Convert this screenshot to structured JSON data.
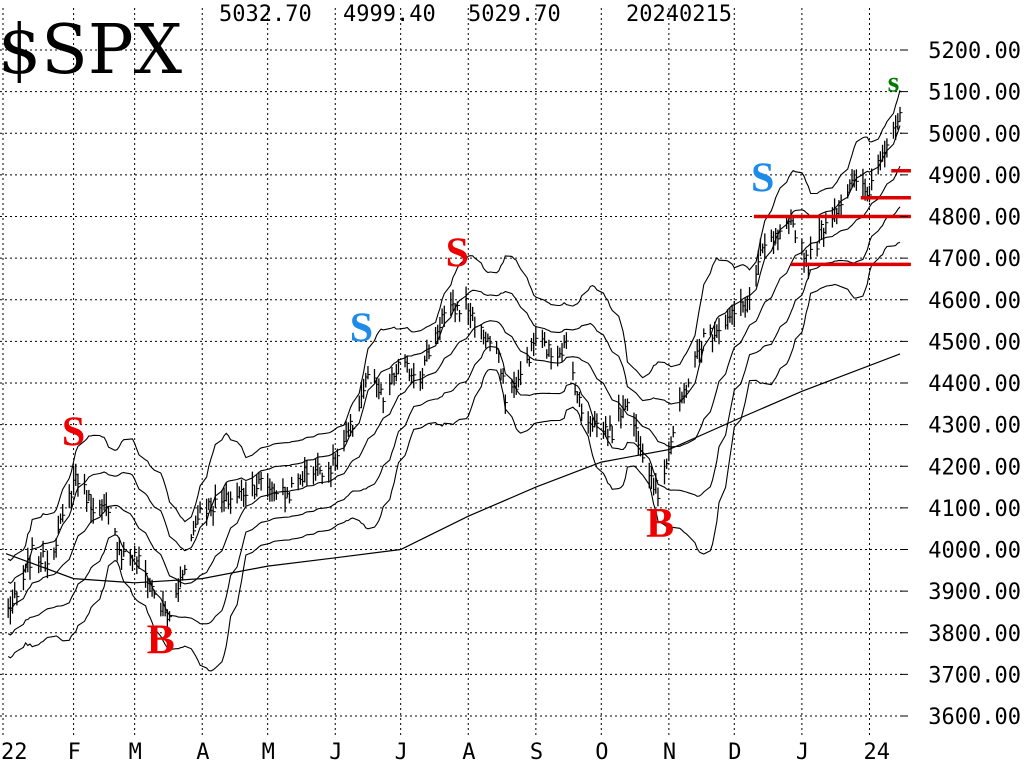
{
  "header": {
    "symbol": "$SPX",
    "high": "5032.70",
    "low": "4999.40",
    "close": "5029.70",
    "date": "20240215"
  },
  "chart_data": {
    "type": "line",
    "title": "$SPX",
    "x_tick_labels": [
      "22",
      "F",
      "M",
      "A",
      "M",
      "J",
      "J",
      "A",
      "S",
      "O",
      "N",
      "D",
      "J",
      "24"
    ],
    "y_tick_labels": [
      "5200.00",
      "5100.00",
      "5000.00",
      "4900.00",
      "4800.00",
      "4700.00",
      "4600.00",
      "4500.00",
      "4400.00",
      "4300.00",
      "4200.00",
      "4100.00",
      "4000.00",
      "3900.00",
      "3800.00",
      "3700.00",
      "3600.00"
    ],
    "ylim": [
      3575,
      5260
    ],
    "grid": true,
    "price_path": [
      [
        "2023-01-01",
        3850
      ],
      [
        "2023-01-06",
        3880
      ],
      [
        "2023-01-13",
        3990
      ],
      [
        "2023-01-20",
        3970
      ],
      [
        "2023-01-27",
        4070
      ],
      [
        "2023-02-02",
        4180
      ],
      [
        "2023-02-09",
        4110
      ],
      [
        "2023-02-16",
        4090
      ],
      [
        "2023-02-23",
        3990
      ],
      [
        "2023-03-02",
        3980
      ],
      [
        "2023-03-08",
        3920
      ],
      [
        "2023-03-13",
        3860
      ],
      [
        "2023-03-17",
        3830
      ],
      [
        "2023-03-23",
        3950
      ],
      [
        "2023-03-31",
        4100
      ],
      [
        "2023-04-10",
        4110
      ],
      [
        "2023-04-20",
        4140
      ],
      [
        "2023-04-28",
        4160
      ],
      [
        "2023-05-10",
        4130
      ],
      [
        "2023-05-19",
        4190
      ],
      [
        "2023-05-31",
        4200
      ],
      [
        "2023-06-09",
        4300
      ],
      [
        "2023-06-16",
        4420
      ],
      [
        "2023-06-23",
        4360
      ],
      [
        "2023-06-30",
        4440
      ],
      [
        "2023-07-10",
        4420
      ],
      [
        "2023-07-20",
        4560
      ],
      [
        "2023-07-31",
        4590
      ],
      [
        "2023-08-07",
        4520
      ],
      [
        "2023-08-14",
        4480
      ],
      [
        "2023-08-18",
        4370
      ],
      [
        "2023-08-25",
        4410
      ],
      [
        "2023-09-01",
        4510
      ],
      [
        "2023-09-08",
        4470
      ],
      [
        "2023-09-15",
        4490
      ],
      [
        "2023-09-22",
        4330
      ],
      [
        "2023-09-29",
        4300
      ],
      [
        "2023-10-06",
        4280
      ],
      [
        "2023-10-12",
        4360
      ],
      [
        "2023-10-20",
        4240
      ],
      [
        "2023-10-27",
        4130
      ],
      [
        "2023-11-01",
        4240
      ],
      [
        "2023-11-08",
        4380
      ],
      [
        "2023-11-17",
        4510
      ],
      [
        "2023-11-30",
        4560
      ],
      [
        "2023-12-08",
        4600
      ],
      [
        "2023-12-14",
        4720
      ],
      [
        "2023-12-22",
        4750
      ],
      [
        "2023-12-28",
        4780
      ],
      [
        "2024-01-04",
        4690
      ],
      [
        "2024-01-11",
        4780
      ],
      [
        "2024-01-19",
        4840
      ],
      [
        "2024-01-26",
        4890
      ],
      [
        "2024-01-31",
        4850
      ],
      [
        "2024-02-06",
        4950
      ],
      [
        "2024-02-12",
        5020
      ],
      [
        "2024-02-15",
        5030
      ]
    ],
    "moving_average_200d": [
      [
        "2023-01-01",
        3990
      ],
      [
        "2023-02-01",
        3930
      ],
      [
        "2023-03-01",
        3920
      ],
      [
        "2023-04-01",
        3930
      ],
      [
        "2023-05-01",
        3960
      ],
      [
        "2023-06-01",
        3980
      ],
      [
        "2023-07-01",
        4000
      ],
      [
        "2023-08-01",
        4080
      ],
      [
        "2023-09-01",
        4150
      ],
      [
        "2023-10-01",
        4210
      ],
      [
        "2023-11-01",
        4240
      ],
      [
        "2023-12-01",
        4310
      ],
      [
        "2024-01-01",
        4380
      ],
      [
        "2024-02-15",
        4470
      ]
    ],
    "signals": [
      {
        "label": "S",
        "date": "2023-02-01",
        "price": 4250,
        "color": "#ee0000"
      },
      {
        "label": "B",
        "date": "2023-03-13",
        "price": 3750,
        "color": "#ee0000"
      },
      {
        "label": "S",
        "date": "2023-06-13",
        "price": 4500,
        "color": "#1e8be8"
      },
      {
        "label": "S",
        "date": "2023-07-27",
        "price": 4680,
        "color": "#ee0000"
      },
      {
        "label": "B",
        "date": "2023-10-28",
        "price": 4030,
        "color": "#ee0000"
      },
      {
        "label": "S",
        "date": "2023-12-14",
        "price": 4860,
        "color": "#1e8be8"
      },
      {
        "label": "s",
        "date": "2024-02-12",
        "price": 5100,
        "color": "#007a00"
      }
    ],
    "support_resistance_lines": [
      {
        "date_from": "2024-02-11",
        "date_to": "2024-02-20",
        "price": 4910
      },
      {
        "date_from": "2024-01-28",
        "date_to": "2024-02-20",
        "price": 4845
      },
      {
        "date_from": "2023-12-10",
        "date_to": "2024-02-20",
        "price": 4800
      },
      {
        "date_from": "2023-12-27",
        "date_to": "2024-02-20",
        "price": 4685
      }
    ],
    "colors": {
      "price": "#000000",
      "bands": "#000000",
      "grid": "#000000",
      "marker_line": "#dd0000"
    }
  }
}
